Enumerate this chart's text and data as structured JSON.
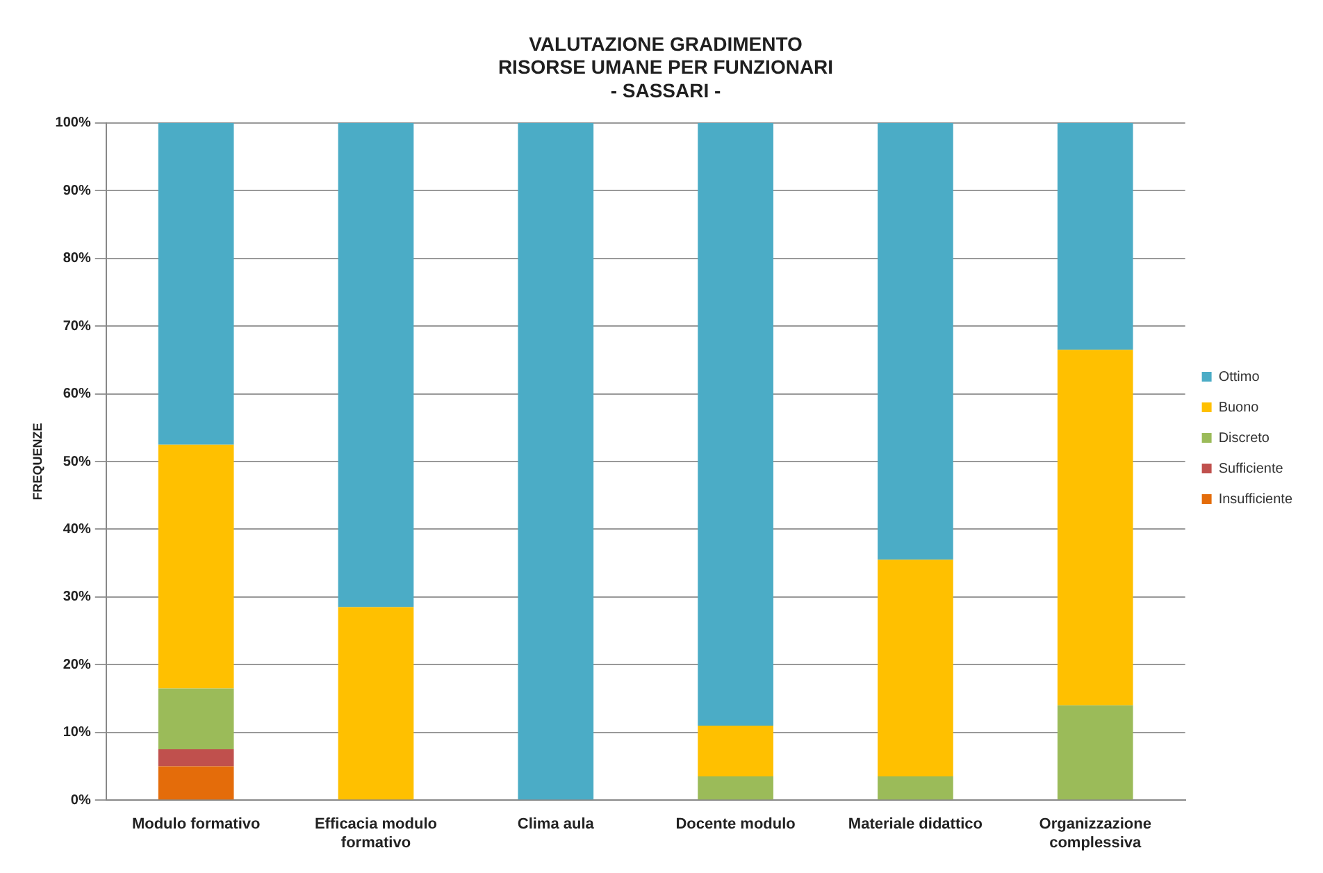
{
  "chart_data": {
    "type": "bar",
    "title": "VALUTAZIONE GRADIMENTO\nRISORSE UMANE PER FUNZIONARI\n- SASSARI -",
    "ylabel": "FREQUENZE",
    "stacked": true,
    "grid": "y",
    "legend": "right",
    "categories": [
      "Modulo formativo",
      "Efficacia modulo formativo",
      "Clima aula",
      "Docente modulo",
      "Materiale didattico",
      "Organizzazione complessiva"
    ],
    "ylim": [
      0,
      100
    ],
    "yticks": [
      {
        "value": 0,
        "label": "0%"
      },
      {
        "value": 10,
        "label": "10%"
      },
      {
        "value": 20,
        "label": "20%"
      },
      {
        "value": 30,
        "label": "30%"
      },
      {
        "value": 40,
        "label": "40%"
      },
      {
        "value": 50,
        "label": "50%"
      },
      {
        "value": 60,
        "label": "60%"
      },
      {
        "value": 70,
        "label": "70%"
      },
      {
        "value": 80,
        "label": "80%"
      },
      {
        "value": 90,
        "label": "90%"
      },
      {
        "value": 100,
        "label": "100%"
      }
    ],
    "series": [
      {
        "name": "Insufficiente",
        "color": "#e46c0a",
        "values": [
          5,
          0,
          0,
          0,
          0,
          0
        ]
      },
      {
        "name": "Sufficiente",
        "color": "#c0504d",
        "values": [
          2.5,
          0,
          0,
          0,
          0,
          0
        ]
      },
      {
        "name": "Discreto",
        "color": "#9bbb59",
        "values": [
          9,
          0,
          0,
          3.5,
          3.5,
          14
        ]
      },
      {
        "name": "Buono",
        "color": "#ffc000",
        "values": [
          36,
          28.5,
          0,
          7.5,
          32,
          52.5
        ]
      },
      {
        "name": "Ottimo",
        "color": "#4bacc6",
        "values": [
          47.5,
          71.5,
          100,
          89,
          64.5,
          33.5
        ]
      }
    ]
  }
}
